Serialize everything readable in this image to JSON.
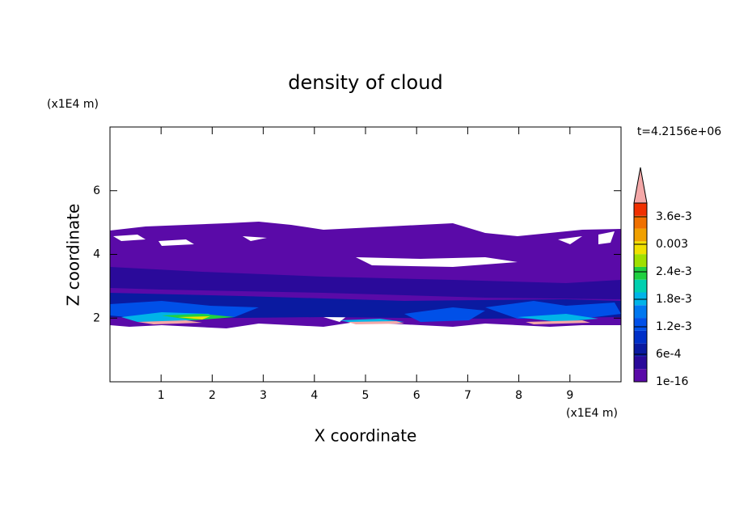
{
  "chart_data": {
    "type": "contour",
    "title": "density of cloud",
    "xlabel": "X coordinate",
    "ylabel": "Z coordinate",
    "xunit": "(x1E4 m)",
    "yunit": "(x1E4 m)",
    "annotation": "t=4.2156e+06",
    "xlim": [
      0,
      10
    ],
    "ylim": [
      0,
      8
    ],
    "xticks": [
      1,
      2,
      3,
      4,
      5,
      6,
      7,
      8,
      9
    ],
    "yticks": [
      2,
      4,
      6
    ],
    "colorbar": {
      "clim": [
        1e-16,
        0.0039
      ],
      "colors": [
        "#5a0aa8",
        "#2a0a9a",
        "#0a1aa0",
        "#0030c8",
        "#0050e8",
        "#0078f0",
        "#00b4e8",
        "#00d0b0",
        "#20d040",
        "#a0e000",
        "#f0e000",
        "#f0a000",
        "#f07000",
        "#f03000"
      ],
      "extend_color": "#f4a8a8",
      "ticks": [
        {
          "value": 1e-16,
          "label": "1e-16"
        },
        {
          "value": 0.0006,
          "label": "6e-4"
        },
        {
          "value": 0.0012,
          "label": "1.2e-3"
        },
        {
          "value": 0.0018,
          "label": "1.8e-3"
        },
        {
          "value": 0.0024,
          "label": "2.4e-3"
        },
        0.003,
        {
          "value": 0.0036,
          "label": "3.6e-3"
        }
      ]
    }
  }
}
